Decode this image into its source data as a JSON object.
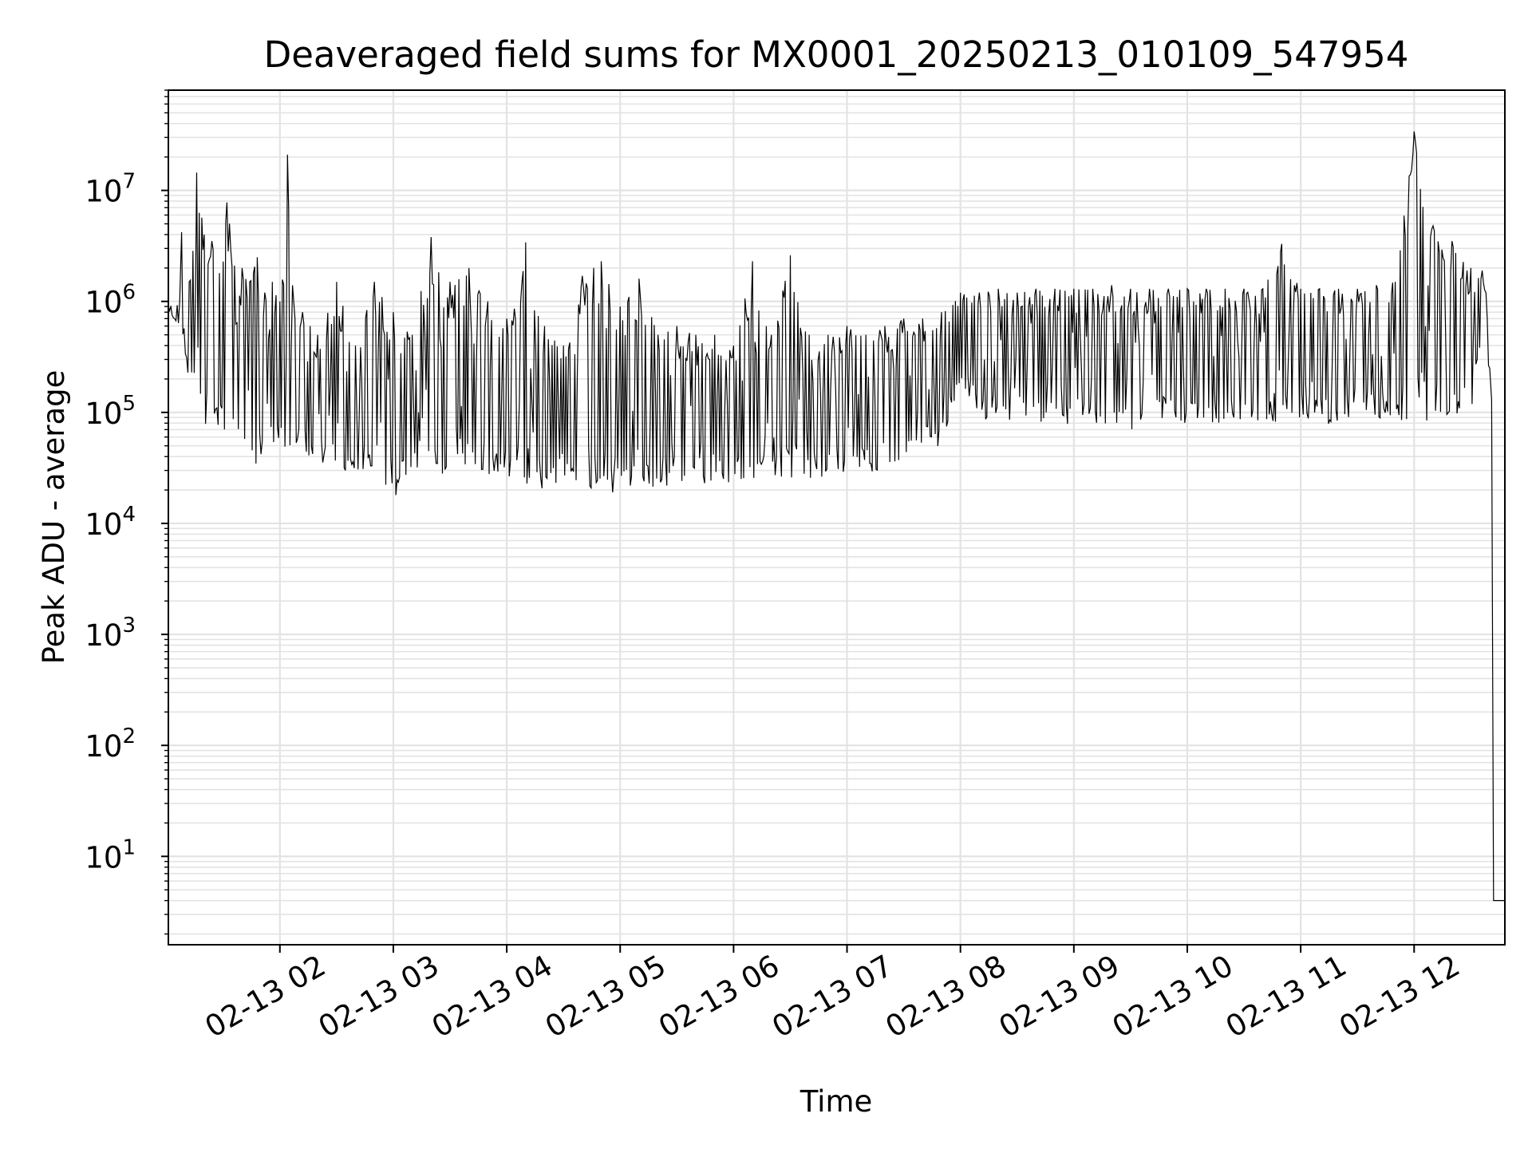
{
  "chart_data": {
    "type": "line",
    "title": "Deaveraged field sums for MX0001_20250213_010109_547954",
    "xlabel": "Time",
    "ylabel": "Peak ADU - average",
    "yscale": "log",
    "ylim": [
      1.6,
      80000000
    ],
    "xlim": [
      "2025-02-13 01:01",
      "2025-02-13 12:48"
    ],
    "grid": "major and minor",
    "line_color": "#000000",
    "grid_color": "#e3e3e3",
    "x_ticks": [
      {
        "label": "02-13 02",
        "value": "2025-02-13 02:00"
      },
      {
        "label": "02-13 03",
        "value": "2025-02-13 03:00"
      },
      {
        "label": "02-13 04",
        "value": "2025-02-13 04:00"
      },
      {
        "label": "02-13 05",
        "value": "2025-02-13 05:00"
      },
      {
        "label": "02-13 06",
        "value": "2025-02-13 06:00"
      },
      {
        "label": "02-13 07",
        "value": "2025-02-13 07:00"
      },
      {
        "label": "02-13 08",
        "value": "2025-02-13 08:00"
      },
      {
        "label": "02-13 09",
        "value": "2025-02-13 09:00"
      },
      {
        "label": "02-13 10",
        "value": "2025-02-13 10:00"
      },
      {
        "label": "02-13 11",
        "value": "2025-02-13 11:00"
      },
      {
        "label": "02-13 12",
        "value": "2025-02-13 12:00"
      }
    ],
    "y_ticks": [
      {
        "base": "10",
        "exp": "1",
        "value": 10
      },
      {
        "base": "10",
        "exp": "2",
        "value": 100
      },
      {
        "base": "10",
        "exp": "3",
        "value": 1000
      },
      {
        "base": "10",
        "exp": "4",
        "value": 10000
      },
      {
        "base": "10",
        "exp": "5",
        "value": 100000
      },
      {
        "base": "10",
        "exp": "6",
        "value": 1000000
      },
      {
        "base": "10",
        "exp": "7",
        "value": 10000000
      }
    ],
    "series": [
      {
        "x": [
          "2025-02-13 01:01",
          "2025-02-13 01:07",
          "2025-02-13 01:08",
          "2025-02-13 01:12",
          "2025-02-13 01:16",
          "2025-02-13 01:20",
          "2025-02-13 01:24",
          "2025-02-13 01:28",
          "2025-02-13 01:32",
          "2025-02-13 01:36",
          "2025-02-13 01:40",
          "2025-02-13 01:44",
          "2025-02-13 01:48",
          "2025-02-13 01:52",
          "2025-02-13 01:56",
          "2025-02-13 02:00",
          "2025-02-13 02:04",
          "2025-02-13 02:08",
          "2025-02-13 02:12",
          "2025-02-13 02:16",
          "2025-02-13 02:20",
          "2025-02-13 02:30",
          "2025-02-13 02:40",
          "2025-02-13 02:50",
          "2025-02-13 03:00",
          "2025-02-13 03:10",
          "2025-02-13 03:20",
          "2025-02-13 03:30",
          "2025-02-13 03:40",
          "2025-02-13 03:50",
          "2025-02-13 04:00",
          "2025-02-13 04:10",
          "2025-02-13 04:20",
          "2025-02-13 04:30",
          "2025-02-13 04:40",
          "2025-02-13 04:50",
          "2025-02-13 05:00",
          "2025-02-13 05:10",
          "2025-02-13 05:20",
          "2025-02-13 05:30",
          "2025-02-13 05:40",
          "2025-02-13 05:50",
          "2025-02-13 06:00",
          "2025-02-13 06:10",
          "2025-02-13 06:20",
          "2025-02-13 06:30",
          "2025-02-13 06:40",
          "2025-02-13 06:50",
          "2025-02-13 07:00",
          "2025-02-13 07:10",
          "2025-02-13 07:20",
          "2025-02-13 07:30",
          "2025-02-13 07:40",
          "2025-02-13 07:50",
          "2025-02-13 08:00",
          "2025-02-13 08:10",
          "2025-02-13 08:20",
          "2025-02-13 08:30",
          "2025-02-13 08:40",
          "2025-02-13 08:50",
          "2025-02-13 09:00",
          "2025-02-13 09:10",
          "2025-02-13 09:20",
          "2025-02-13 09:30",
          "2025-02-13 09:40",
          "2025-02-13 09:50",
          "2025-02-13 10:00",
          "2025-02-13 10:10",
          "2025-02-13 10:20",
          "2025-02-13 10:30",
          "2025-02-13 10:40",
          "2025-02-13 10:50",
          "2025-02-13 11:00",
          "2025-02-13 11:10",
          "2025-02-13 11:20",
          "2025-02-13 11:30",
          "2025-02-13 11:40",
          "2025-02-13 11:50",
          "2025-02-13 12:00",
          "2025-02-13 12:10",
          "2025-02-13 12:20",
          "2025-02-13 12:30",
          "2025-02-13 12:36",
          "2025-02-13 12:38",
          "2025-02-13 12:40",
          "2025-02-13 12:41",
          "2025-02-13 12:42",
          "2025-02-13 12:48"
        ],
        "high": [
          900000,
          1000000,
          4200000,
          1500000,
          14500000,
          4000000,
          3500000,
          1800000,
          7800000,
          2100000,
          2000000,
          1500000,
          2500000,
          1200000,
          1500000,
          1000000,
          21000000,
          700000,
          800000,
          600000,
          500000,
          1500000,
          400000,
          1500000,
          800000,
          500000,
          3800000,
          1500000,
          2000000,
          1000000,
          700000,
          3400000,
          600000,
          400000,
          1700000,
          2300000,
          900000,
          1600000,
          500000,
          600000,
          500000,
          500000,
          400000,
          2300000,
          500000,
          2600000,
          500000,
          500000,
          600000,
          500000,
          600000,
          700000,
          700000,
          800000,
          1200000,
          1200000,
          1300000,
          1200000,
          1300000,
          1300000,
          1300000,
          1300000,
          1400000,
          1300000,
          1300000,
          1300000,
          1300000,
          1300000,
          1300000,
          1300000,
          1300000,
          3300000,
          1300000,
          1300000,
          1300000,
          1300000,
          1400000,
          1500000,
          34000000,
          4800000,
          3500000,
          2000000,
          1900000,
          1200000,
          250000,
          130000,
          4,
          4
        ],
        "low": [
          800000,
          600000,
          600000,
          180000,
          110000,
          70000,
          100000,
          70000,
          60000,
          40000,
          40000,
          60000,
          22000,
          50000,
          50000,
          50000,
          40000,
          40000,
          40000,
          40000,
          40000,
          25000,
          30000,
          30000,
          16000,
          30000,
          30000,
          20000,
          30000,
          25000,
          25000,
          20000,
          20000,
          25000,
          20000,
          20000,
          18000,
          22000,
          20000,
          22000,
          20000,
          25000,
          20000,
          25000,
          25000,
          25000,
          25000,
          25000,
          30000,
          25000,
          30000,
          40000,
          45000,
          50000,
          200000,
          80000,
          90000,
          80000,
          80000,
          70000,
          80000,
          70000,
          60000,
          60000,
          80000,
          80000,
          80000,
          80000,
          80000,
          80000,
          80000,
          80000,
          90000,
          80000,
          70000,
          100000,
          90000,
          80000,
          80000,
          80000,
          100000,
          90000,
          400000,
          600000,
          150000,
          100000,
          4,
          4
        ]
      }
    ]
  }
}
